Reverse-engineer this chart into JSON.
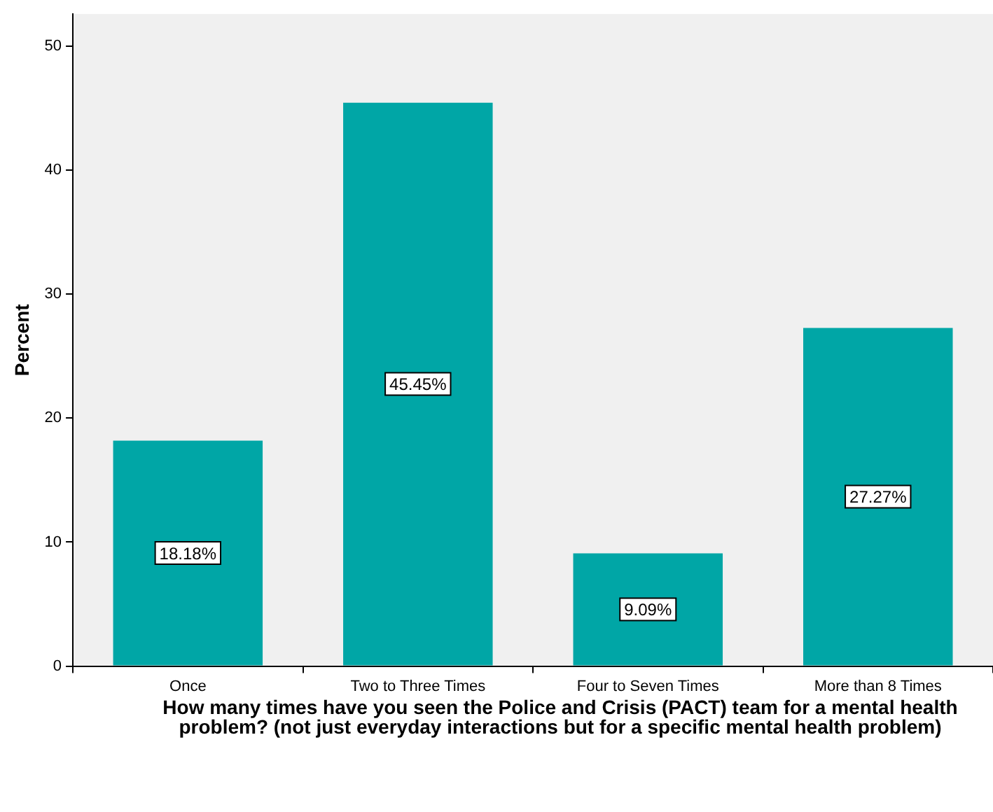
{
  "chart_data": {
    "type": "bar",
    "xlabel": "How many times have you seen the Police and Crisis (PACT) team for a mental health problem? (not just everyday interactions but for a specific mental health problem)",
    "ylabel": "Percent",
    "categories": [
      "Once",
      "Two to Three Times",
      "Four to Seven Times",
      "More than 8 Times"
    ],
    "values": [
      18.18,
      45.45,
      9.09,
      27.27
    ],
    "value_labels": [
      "18.18%",
      "45.45%",
      "9.09%",
      "27.27%"
    ],
    "color": "#00a6a6",
    "ylim": [
      0,
      52.6
    ],
    "yticks": [
      0,
      10,
      20,
      30,
      40,
      50
    ],
    "grid": false,
    "legend": false
  }
}
